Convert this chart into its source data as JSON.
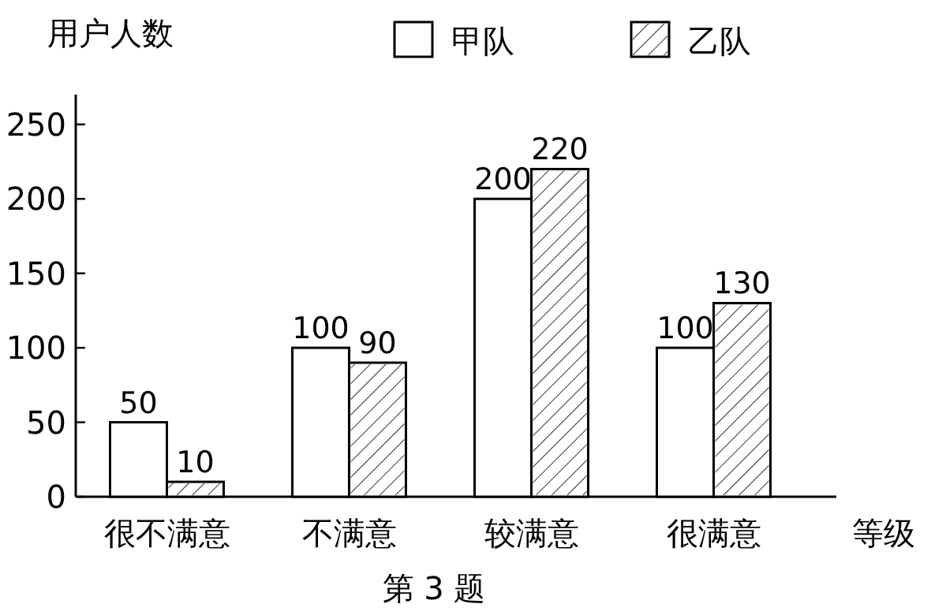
{
  "chart_data": {
    "type": "bar",
    "xlabel": "等级",
    "ylabel": "用户人数",
    "categories": [
      "很不满意",
      "不满意",
      "较满意",
      "很满意"
    ],
    "series": [
      {
        "name": "甲队",
        "color": "#ffffff",
        "values": [
          50,
          100,
          200,
          100
        ]
      },
      {
        "name": "乙队",
        "color": "#ffffff",
        "values": [
          10,
          90,
          220,
          130
        ]
      }
    ],
    "ylim": [
      0,
      270
    ],
    "yticks": [
      0,
      50,
      100,
      150,
      200,
      250
    ],
    "data_labels": true,
    "legend": "top",
    "annotations": [
      "第 3 题"
    ]
  }
}
